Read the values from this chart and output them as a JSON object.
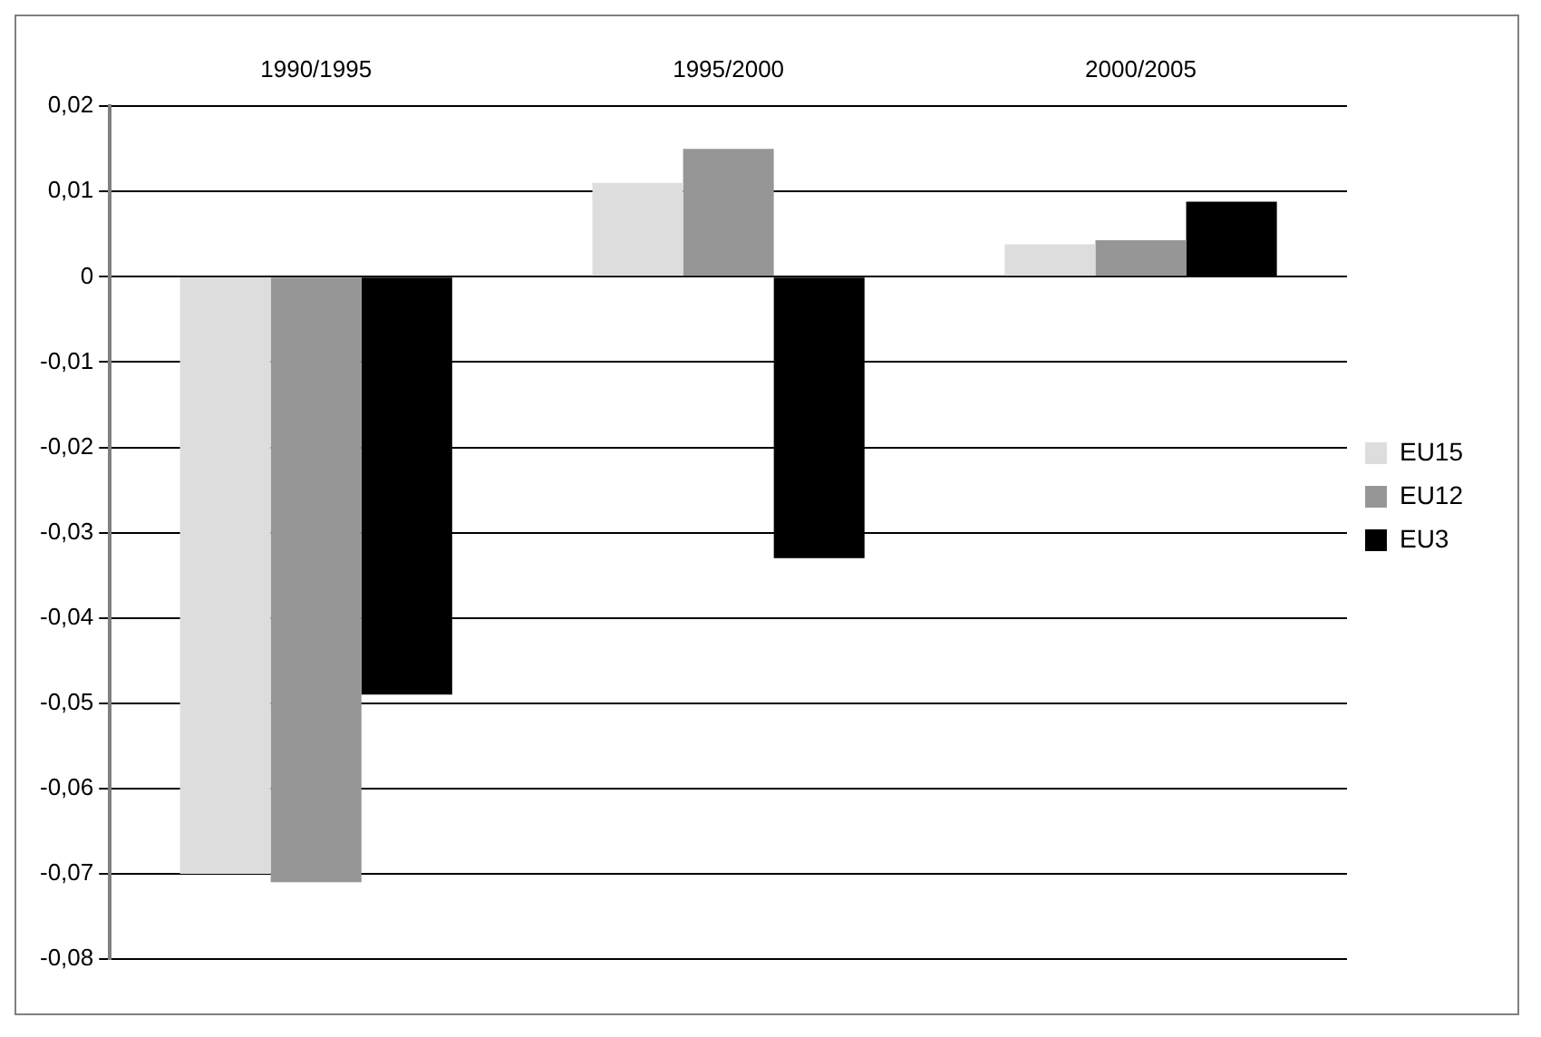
{
  "chart_data": {
    "type": "bar",
    "categories": [
      "1990/1995",
      "1995/2000",
      "2000/2005"
    ],
    "series": [
      {
        "name": "EU15",
        "color": "#dddddd",
        "values": [
          -0.07,
          0.011,
          0.0038
        ]
      },
      {
        "name": "EU12",
        "color": "#969696",
        "values": [
          -0.071,
          0.015,
          0.0043
        ]
      },
      {
        "name": "EU3",
        "color": "#000000",
        "values": [
          -0.049,
          -0.033,
          0.0088
        ]
      }
    ],
    "ylim": [
      -0.08,
      0.02
    ],
    "yticks": [
      {
        "value": -0.08,
        "label": "-0,08"
      },
      {
        "value": -0.07,
        "label": "-0,07"
      },
      {
        "value": -0.06,
        "label": "-0,06"
      },
      {
        "value": -0.05,
        "label": "-0,05"
      },
      {
        "value": -0.04,
        "label": "-0,04"
      },
      {
        "value": -0.03,
        "label": "-0,03"
      },
      {
        "value": -0.02,
        "label": "-0,02"
      },
      {
        "value": -0.01,
        "label": "-0,01"
      },
      0,
      {
        "value": 0.01,
        "label": "0,01"
      },
      {
        "value": 0.02,
        "label": "0,02"
      }
    ],
    "grid": "y",
    "legend": "right"
  }
}
